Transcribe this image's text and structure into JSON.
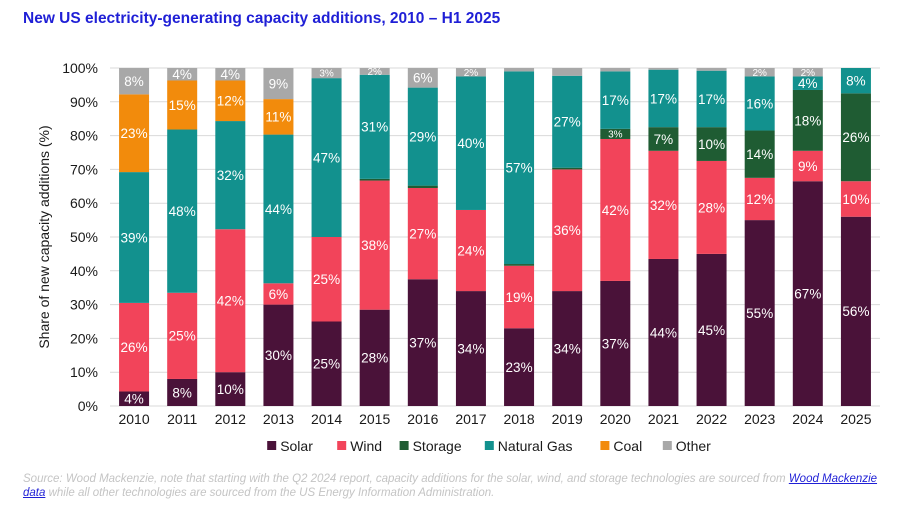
{
  "title": "New US electricity-generating capacity additions, 2010 – H1 2025",
  "source": {
    "text_before": "Source: Wood Mackenzie, note that starting with the Q2 2024 report, capacity additions for the solar, wind, and storage technologies are sourced from ",
    "link_text": "Wood Mackenzie data",
    "text_after": " while all other technologies are sourced from the US Energy Information Administration."
  },
  "colors": {
    "Solar": "#4a1239",
    "Wind": "#f2445a",
    "Storage": "#1f5c33",
    "Natural Gas": "#12918e",
    "Coal": "#f28b0c",
    "Other": "#a8a8a8",
    "grid": "#d9d9d9",
    "axis_text": "#1a1a1a"
  },
  "chart_data": {
    "type": "bar",
    "stacked": true,
    "ylabel": "Share of new capacity additions (%)",
    "xlabel": "",
    "ylim": [
      0,
      100
    ],
    "yticks": [
      "0%",
      "10%",
      "20%",
      "30%",
      "40%",
      "50%",
      "60%",
      "70%",
      "80%",
      "90%",
      "100%"
    ],
    "grid": true,
    "legend_position": "bottom",
    "categories": [
      "2010",
      "2011",
      "2012",
      "2013",
      "2014",
      "2015",
      "2016",
      "2017",
      "2018",
      "2019",
      "2020",
      "2021",
      "2022",
      "2023",
      "2024",
      "2025"
    ],
    "series": [
      {
        "name": "Solar",
        "values": [
          4.3,
          8,
          10,
          30,
          25,
          28.5,
          37.5,
          34,
          23,
          34,
          37,
          43.5,
          45,
          55,
          66.5,
          56
        ],
        "labels": [
          "4%",
          "8%",
          "10%",
          "30%",
          "25%",
          "28%",
          "37%",
          "34%",
          "23%",
          "34%",
          "37%",
          "44%",
          "45%",
          "55%",
          "67%",
          "56%"
        ]
      },
      {
        "name": "Wind",
        "values": [
          26.2,
          25.5,
          42.3,
          6.3,
          25,
          38.2,
          27,
          24,
          18.5,
          36,
          42,
          32,
          27.5,
          12.5,
          9,
          10.5
        ],
        "labels": [
          "26%",
          "25%",
          "42%",
          "6%",
          "25%",
          "38%",
          "27%",
          "24%",
          "19%",
          "36%",
          "42%",
          "32%",
          "28%",
          "12%",
          "9%",
          "10%"
        ]
      },
      {
        "name": "Storage",
        "values": [
          0,
          0,
          0,
          0,
          0,
          0.5,
          0.7,
          0,
          0.5,
          0.5,
          3,
          7,
          10,
          14,
          18,
          26
        ],
        "labels": [
          "",
          "",
          "",
          "",
          "",
          "",
          "",
          "",
          "",
          "",
          "3%",
          "7%",
          "10%",
          "14%",
          "18%",
          "26%"
        ]
      },
      {
        "name": "Natural Gas",
        "values": [
          38.7,
          48.3,
          32,
          44,
          47,
          30.8,
          29,
          39.5,
          57,
          27.2,
          17,
          17,
          16.7,
          16,
          4,
          7.5
        ],
        "labels": [
          "39%",
          "48%",
          "32%",
          "44%",
          "47%",
          "31%",
          "29%",
          "40%",
          "57%",
          "27%",
          "17%",
          "17%",
          "17%",
          "16%",
          "4%",
          "8%"
        ]
      },
      {
        "name": "Coal",
        "values": [
          23,
          14.5,
          12,
          10.5,
          0,
          0,
          0,
          0,
          0,
          0,
          0,
          0,
          0,
          0,
          0,
          0
        ],
        "labels": [
          "23%",
          "15%",
          "12%",
          "11%",
          "",
          "",
          "",
          "",
          "",
          "",
          "",
          "",
          "",
          "",
          "",
          ""
        ]
      },
      {
        "name": "Other",
        "values": [
          7.8,
          3.7,
          3.7,
          9.2,
          3,
          2,
          5.8,
          2.5,
          1,
          2.3,
          1,
          0.5,
          0.8,
          2.5,
          2.5,
          0
        ],
        "labels": [
          "8%",
          "4%",
          "4%",
          "9%",
          "3%",
          "2%",
          "6%",
          "2%",
          "",
          "",
          "",
          "",
          "",
          "2%",
          "2%",
          ""
        ]
      }
    ]
  }
}
